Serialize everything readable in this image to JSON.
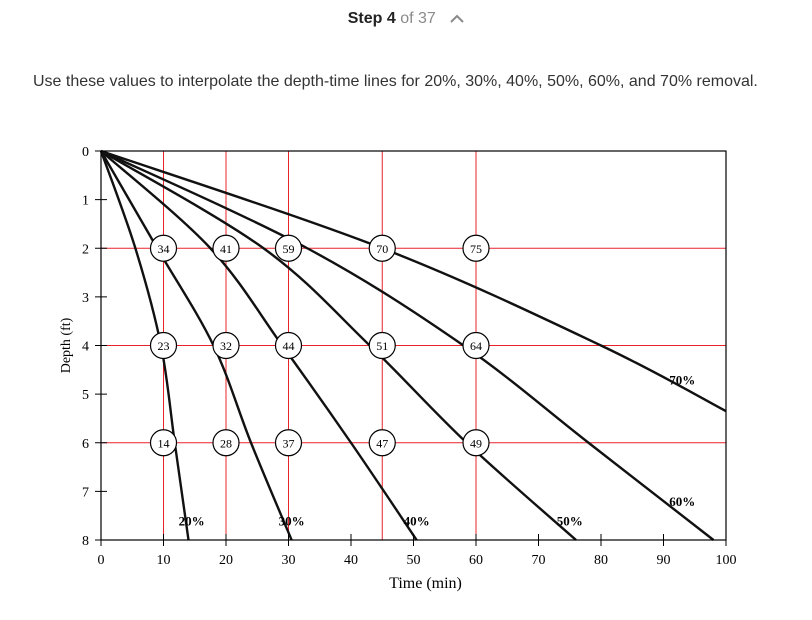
{
  "step": {
    "label": "Step",
    "number": "4",
    "of_text": "of 37"
  },
  "instruction": "Use these values to interpolate the depth-time lines for 20%, 30%, 40%, 50%, 60%, and 70% removal.",
  "colors": {
    "grid": "#e8242a",
    "curve": "#111111",
    "axis": "#000000",
    "text": "#333333",
    "header_muted": "#8a8a8a"
  },
  "icons": {
    "collapse": "chevron-up-icon"
  },
  "chart_data": {
    "type": "line",
    "xlabel": "Time (min)",
    "ylabel": "Depth (ft)",
    "xlim": [
      0,
      100
    ],
    "ylim": [
      0,
      8
    ],
    "y_inverted": true,
    "x_ticks": [
      "0",
      "10",
      "20",
      "30",
      "40",
      "50",
      "60",
      "70",
      "80",
      "90",
      "100"
    ],
    "y_ticks": [
      "0",
      "1",
      "2",
      "3",
      "4",
      "5",
      "6",
      "7",
      "8"
    ],
    "grid_x": [
      10,
      20,
      30,
      45,
      60
    ],
    "grid_y": [
      2,
      4,
      6
    ],
    "observations": [
      {
        "x": 10,
        "y": 2,
        "label": "34"
      },
      {
        "x": 20,
        "y": 2,
        "label": "41"
      },
      {
        "x": 30,
        "y": 2,
        "label": "59"
      },
      {
        "x": 45,
        "y": 2,
        "label": "70"
      },
      {
        "x": 60,
        "y": 2,
        "label": "75"
      },
      {
        "x": 10,
        "y": 4,
        "label": "23"
      },
      {
        "x": 20,
        "y": 4,
        "label": "32"
      },
      {
        "x": 30,
        "y": 4,
        "label": "44"
      },
      {
        "x": 45,
        "y": 4,
        "label": "51"
      },
      {
        "x": 60,
        "y": 4,
        "label": "64"
      },
      {
        "x": 10,
        "y": 6,
        "label": "14"
      },
      {
        "x": 20,
        "y": 6,
        "label": "28"
      },
      {
        "x": 30,
        "y": 6,
        "label": "37"
      },
      {
        "x": 45,
        "y": 6,
        "label": "47"
      },
      {
        "x": 60,
        "y": 6,
        "label": "49"
      }
    ],
    "series": [
      {
        "name": "20%",
        "label_pos": [
          14.5,
          7.7
        ],
        "points": [
          [
            0,
            0
          ],
          [
            5.5,
            2.0
          ],
          [
            9.6,
            4.0
          ],
          [
            11.8,
            6.0
          ],
          [
            14.0,
            8.0
          ]
        ]
      },
      {
        "name": "30%",
        "label_pos": [
          30.5,
          7.7
        ],
        "points": [
          [
            0,
            0
          ],
          [
            9.0,
            2.0
          ],
          [
            18.0,
            4.0
          ],
          [
            24.0,
            6.0
          ],
          [
            30.5,
            8.0
          ]
        ]
      },
      {
        "name": "40%",
        "label_pos": [
          50.5,
          7.7
        ],
        "points": [
          [
            0,
            0
          ],
          [
            17.5,
            2.0
          ],
          [
            29.0,
            4.0
          ],
          [
            40.0,
            6.0
          ],
          [
            50.5,
            8.0
          ]
        ]
      },
      {
        "name": "50%",
        "label_pos": [
          75.0,
          7.7
        ],
        "points": [
          [
            0,
            0
          ],
          [
            26.0,
            2.0
          ],
          [
            43.0,
            4.0
          ],
          [
            58.5,
            6.0
          ],
          [
            76.0,
            8.0
          ]
        ]
      },
      {
        "name": "60%",
        "label_pos": [
          93.0,
          7.3
        ],
        "points": [
          [
            0,
            0
          ],
          [
            33.0,
            2.0
          ],
          [
            58.0,
            4.0
          ],
          [
            78.0,
            6.0
          ],
          [
            98.0,
            8.0
          ]
        ]
      },
      {
        "name": "70%",
        "label_pos": [
          93.0,
          4.8
        ],
        "points": [
          [
            0,
            0
          ],
          [
            45.0,
            2.0
          ],
          [
            80.0,
            4.0
          ],
          [
            100.0,
            5.35
          ]
        ]
      }
    ]
  }
}
